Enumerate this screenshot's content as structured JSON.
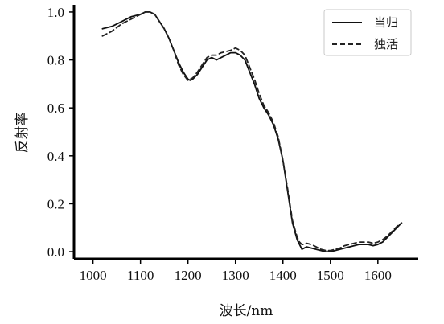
{
  "chart_data": {
    "type": "line",
    "title": "",
    "xlabel": "波长/nm",
    "ylabel": "反射率",
    "xlim": [
      960,
      1685
    ],
    "ylim": [
      -0.03,
      1.03
    ],
    "xticks": [
      1000,
      1100,
      1200,
      1300,
      1400,
      1500,
      1600
    ],
    "yticks": [
      0.0,
      0.2,
      0.4,
      0.6,
      0.8,
      1.0
    ],
    "ytick_labels": [
      "0.0",
      "0.2",
      "0.4",
      "0.6",
      "0.8",
      "1.0"
    ],
    "grid": false,
    "legend_position": "top-right",
    "series": [
      {
        "name": "当归",
        "style": "solid",
        "color": "#111111",
        "x": [
          1020,
          1040,
          1060,
          1080,
          1100,
          1110,
          1120,
          1130,
          1140,
          1150,
          1160,
          1170,
          1180,
          1190,
          1200,
          1205,
          1210,
          1220,
          1230,
          1240,
          1250,
          1260,
          1270,
          1280,
          1290,
          1300,
          1310,
          1320,
          1330,
          1340,
          1350,
          1360,
          1370,
          1380,
          1390,
          1400,
          1410,
          1420,
          1430,
          1435,
          1440,
          1445,
          1450,
          1460,
          1470,
          1480,
          1490,
          1500,
          1510,
          1520,
          1530,
          1540,
          1550,
          1560,
          1570,
          1580,
          1590,
          1600,
          1610,
          1620,
          1630,
          1640,
          1650
        ],
        "values": [
          0.93,
          0.94,
          0.96,
          0.98,
          0.99,
          1.0,
          1.0,
          0.99,
          0.96,
          0.93,
          0.89,
          0.84,
          0.79,
          0.75,
          0.72,
          0.715,
          0.72,
          0.74,
          0.77,
          0.8,
          0.81,
          0.8,
          0.81,
          0.82,
          0.83,
          0.83,
          0.82,
          0.8,
          0.75,
          0.7,
          0.64,
          0.6,
          0.57,
          0.53,
          0.47,
          0.38,
          0.25,
          0.12,
          0.05,
          0.03,
          0.01,
          0.015,
          0.02,
          0.015,
          0.01,
          0.005,
          0.0,
          0.0,
          0.005,
          0.01,
          0.015,
          0.02,
          0.025,
          0.03,
          0.03,
          0.03,
          0.025,
          0.03,
          0.04,
          0.06,
          0.08,
          0.1,
          0.12
        ]
      },
      {
        "name": "独活",
        "style": "dashed",
        "color": "#222222",
        "x": [
          1020,
          1040,
          1060,
          1080,
          1100,
          1110,
          1120,
          1130,
          1140,
          1150,
          1160,
          1170,
          1180,
          1190,
          1200,
          1205,
          1210,
          1220,
          1230,
          1240,
          1250,
          1260,
          1270,
          1280,
          1290,
          1300,
          1310,
          1320,
          1330,
          1340,
          1350,
          1360,
          1370,
          1380,
          1390,
          1400,
          1410,
          1420,
          1430,
          1435,
          1440,
          1445,
          1450,
          1460,
          1470,
          1480,
          1490,
          1500,
          1510,
          1520,
          1530,
          1540,
          1550,
          1560,
          1570,
          1580,
          1590,
          1600,
          1610,
          1620,
          1630,
          1640,
          1650
        ],
        "values": [
          0.9,
          0.92,
          0.95,
          0.97,
          0.99,
          1.0,
          1.0,
          0.99,
          0.96,
          0.93,
          0.89,
          0.84,
          0.78,
          0.74,
          0.715,
          0.72,
          0.725,
          0.75,
          0.78,
          0.81,
          0.82,
          0.82,
          0.83,
          0.835,
          0.84,
          0.85,
          0.84,
          0.82,
          0.77,
          0.72,
          0.66,
          0.61,
          0.58,
          0.54,
          0.48,
          0.38,
          0.26,
          0.13,
          0.06,
          0.04,
          0.03,
          0.03,
          0.035,
          0.03,
          0.02,
          0.01,
          0.005,
          0.005,
          0.01,
          0.015,
          0.025,
          0.03,
          0.035,
          0.04,
          0.04,
          0.04,
          0.035,
          0.04,
          0.05,
          0.065,
          0.085,
          0.105,
          0.12
        ]
      }
    ]
  }
}
